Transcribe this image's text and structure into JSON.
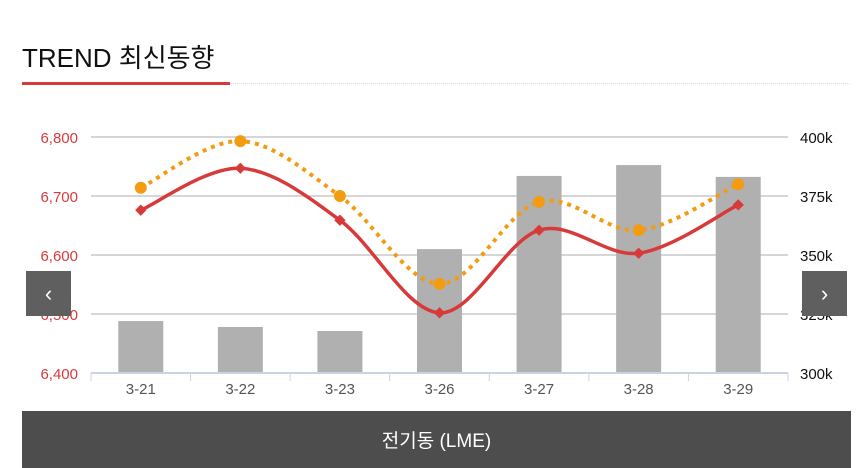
{
  "header": {
    "title": "TREND 최신동향"
  },
  "nav": {
    "prev": "‹",
    "next": "›"
  },
  "footer": {
    "label": "전기동 (LME)"
  },
  "colors": {
    "accent": "#d83a3a",
    "orange": "#f39c12",
    "bar": "#b0b0b0"
  },
  "chart_data": {
    "type": "bar+line",
    "categories": [
      "3-21",
      "3-22",
      "3-23",
      "3-26",
      "3-27",
      "3-28",
      "3-29"
    ],
    "left_axis": {
      "range": [
        6400,
        6800
      ],
      "ticks": [
        "6,400",
        "6,500",
        "6,600",
        "6,700",
        "6,800"
      ]
    },
    "right_axis": {
      "range": [
        300,
        400
      ],
      "ticks": [
        "300k",
        "325k",
        "350k",
        "375k",
        "400k"
      ]
    },
    "series": [
      {
        "name": "bars",
        "type": "bar",
        "axis": "right",
        "values": [
          322,
          319.5,
          317.8,
          352.5,
          383.5,
          388.1,
          383.1
        ]
      },
      {
        "name": "red-line",
        "type": "line",
        "axis": "left",
        "values": [
          6676,
          6747,
          6659,
          6502,
          6642,
          6603,
          6685
        ]
      },
      {
        "name": "orange-dotted-line",
        "type": "line",
        "axis": "left",
        "values": [
          6714,
          6793,
          6700,
          6551,
          6690,
          6642,
          6720
        ]
      }
    ],
    "grid": true
  }
}
